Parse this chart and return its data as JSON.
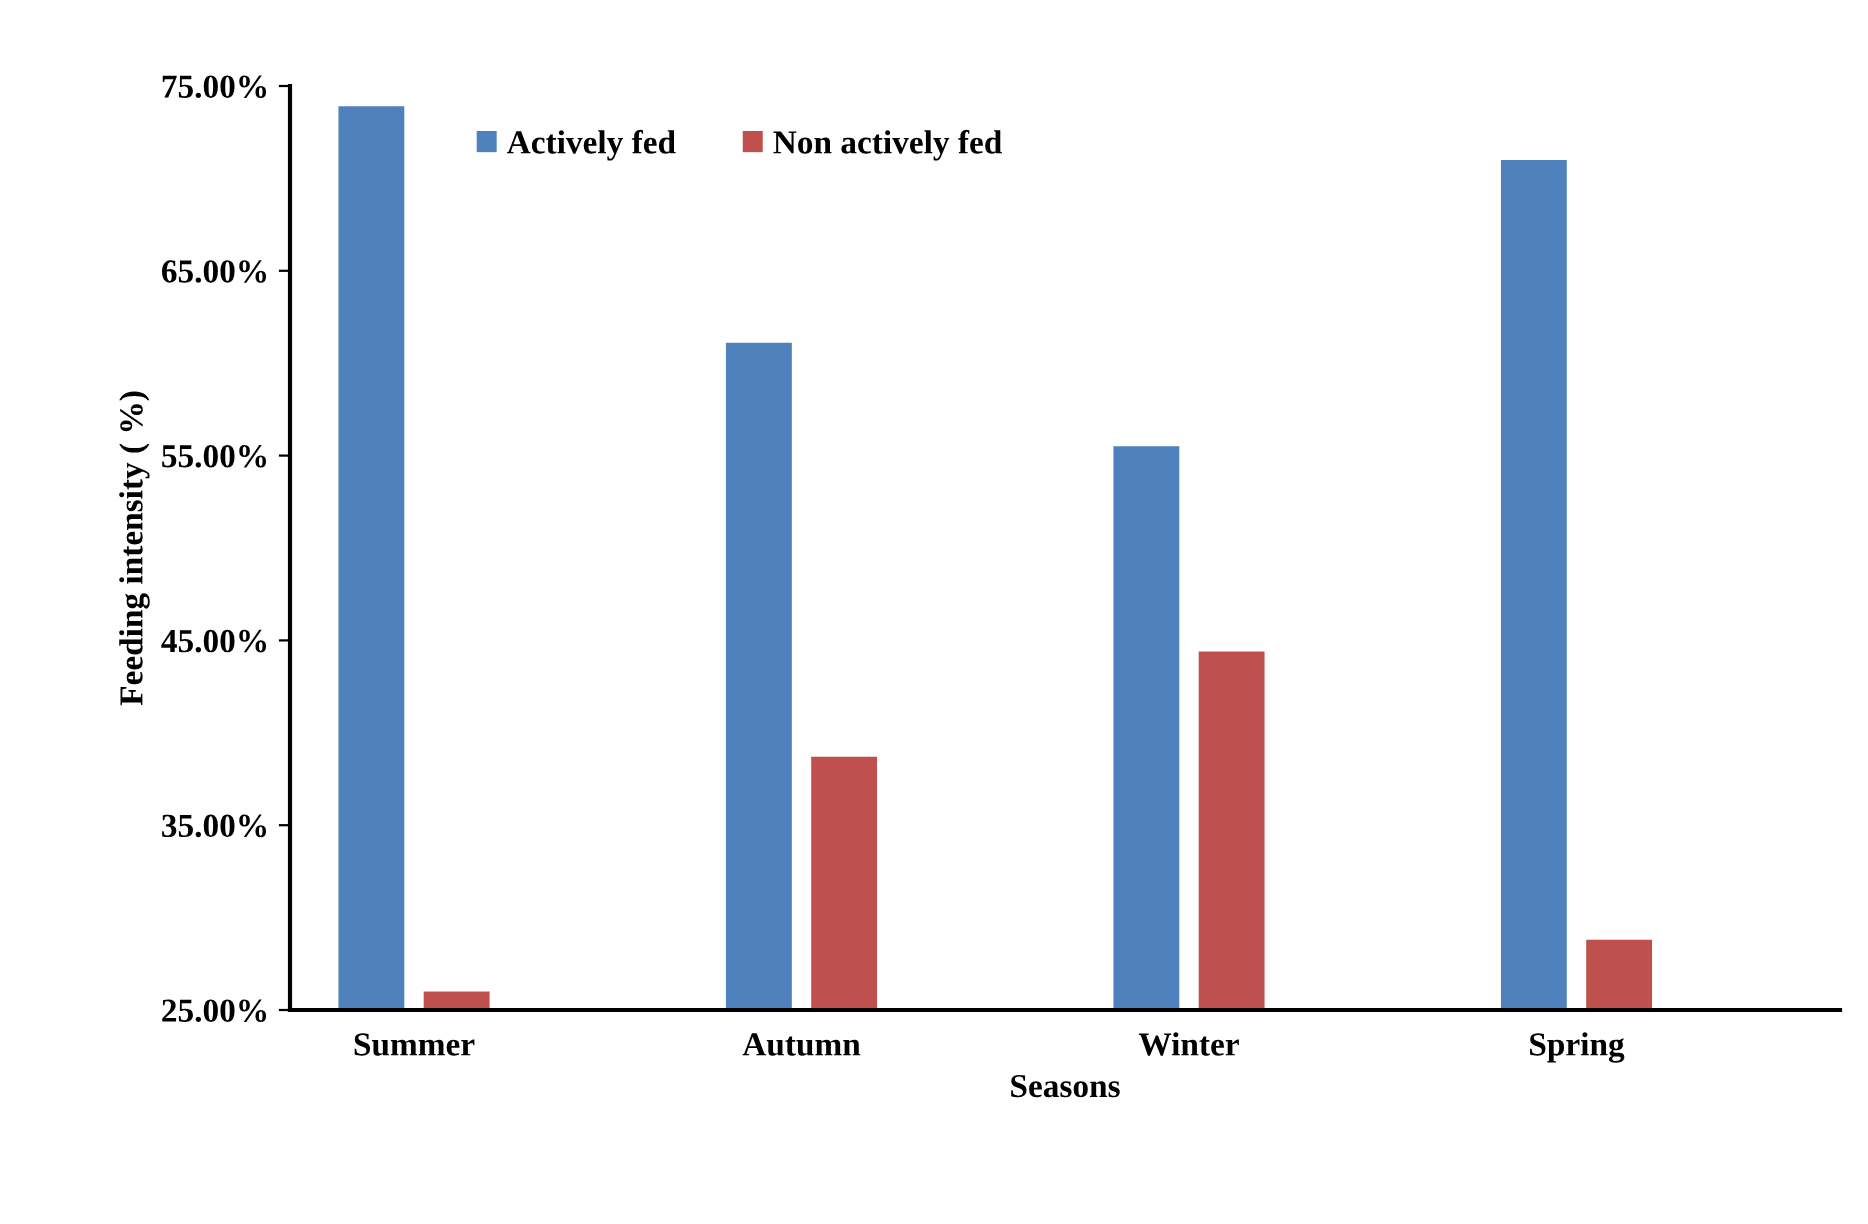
{
  "chart_data": {
    "type": "bar",
    "xlabel": "Seasons",
    "ylabel": "Feeding intensity ( %)",
    "categories": [
      "Summer",
      "Autumn",
      "Winter",
      "Spring"
    ],
    "series": [
      {
        "name": "Actively fed",
        "color": "#4f81bd",
        "values": [
          73.9,
          61.1,
          55.5,
          71.0
        ]
      },
      {
        "name": "Non actively fed",
        "color": "#c0504d",
        "values": [
          26.0,
          38.7,
          44.4,
          28.8
        ]
      }
    ],
    "ylim": [
      25,
      75
    ],
    "yticks": [
      {
        "value": 25,
        "label": "25.00%"
      },
      {
        "value": 35,
        "label": "35.00%"
      },
      {
        "value": 45,
        "label": "45.00%"
      },
      {
        "value": 55,
        "label": "55.00%"
      },
      {
        "value": 65,
        "label": "65.00%"
      },
      {
        "value": 75,
        "label": "75.00%"
      }
    ],
    "grid": false,
    "legend": "top"
  }
}
